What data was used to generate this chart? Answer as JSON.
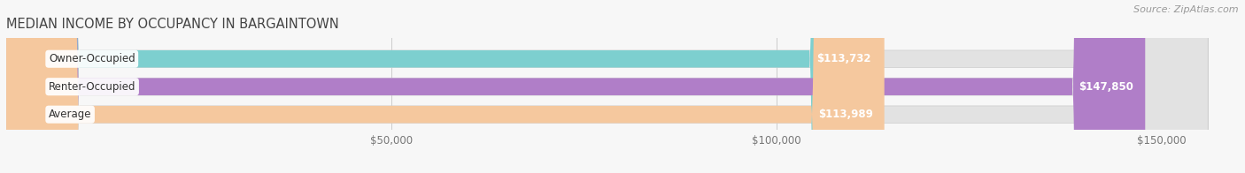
{
  "title": "MEDIAN INCOME BY OCCUPANCY IN BARGAINTOWN",
  "source": "Source: ZipAtlas.com",
  "categories": [
    "Owner-Occupied",
    "Renter-Occupied",
    "Average"
  ],
  "values": [
    113732,
    147850,
    113989
  ],
  "labels": [
    "$113,732",
    "$147,850",
    "$113,989"
  ],
  "bar_colors": [
    "#7dcfcf",
    "#b07ec8",
    "#f5c89e"
  ],
  "background_color": "#f7f7f7",
  "bar_bg_color": "#e2e2e2",
  "xlim_max": 160000,
  "xticks": [
    50000,
    100000,
    150000
  ],
  "xtick_labels": [
    "$50,000",
    "$100,000",
    "$150,000"
  ],
  "label_fontsize": 8.5,
  "cat_fontsize": 8.5,
  "title_fontsize": 10.5,
  "source_fontsize": 8
}
